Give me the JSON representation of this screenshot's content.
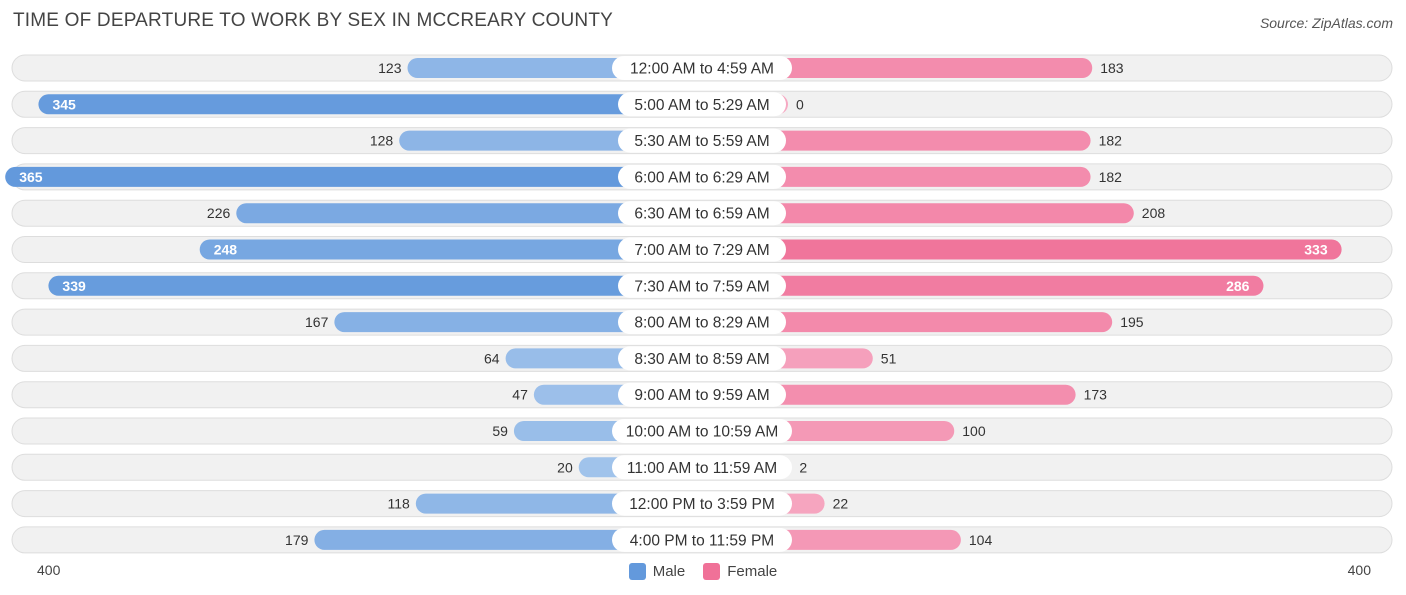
{
  "title": "TIME OF DEPARTURE TO WORK BY SEX IN MCCREARY COUNTY",
  "source": "Source: ZipAtlas.com",
  "colors": {
    "male_light": "#a4c5ec",
    "male_dark": "#6399dc",
    "female_light": "#f6a8c2",
    "female_dark": "#f07198",
    "row_bg": "#f1f1f1",
    "row_border": "#dddddd"
  },
  "legend": {
    "male": "Male",
    "female": "Female"
  },
  "axis": {
    "left_label": "400",
    "right_label": "400"
  },
  "chart_data": {
    "type": "bar",
    "orientation": "horizontal-diverging",
    "title": "TIME OF DEPARTURE TO WORK BY SEX IN MCCREARY COUNTY",
    "xlim": [
      -400,
      400
    ],
    "legend_position": "bottom-center",
    "categories": [
      "12:00 AM to 4:59 AM",
      "5:00 AM to 5:29 AM",
      "5:30 AM to 5:59 AM",
      "6:00 AM to 6:29 AM",
      "6:30 AM to 6:59 AM",
      "7:00 AM to 7:29 AM",
      "7:30 AM to 7:59 AM",
      "8:00 AM to 8:29 AM",
      "8:30 AM to 8:59 AM",
      "9:00 AM to 9:59 AM",
      "10:00 AM to 10:59 AM",
      "11:00 AM to 11:59 AM",
      "12:00 PM to 3:59 PM",
      "4:00 PM to 11:59 PM"
    ],
    "series": [
      {
        "name": "Male",
        "values": [
          123,
          345,
          128,
          365,
          226,
          248,
          339,
          167,
          64,
          47,
          59,
          20,
          118,
          179
        ]
      },
      {
        "name": "Female",
        "values": [
          183,
          0,
          182,
          182,
          208,
          333,
          286,
          195,
          51,
          173,
          100,
          2,
          22,
          104
        ]
      }
    ]
  }
}
